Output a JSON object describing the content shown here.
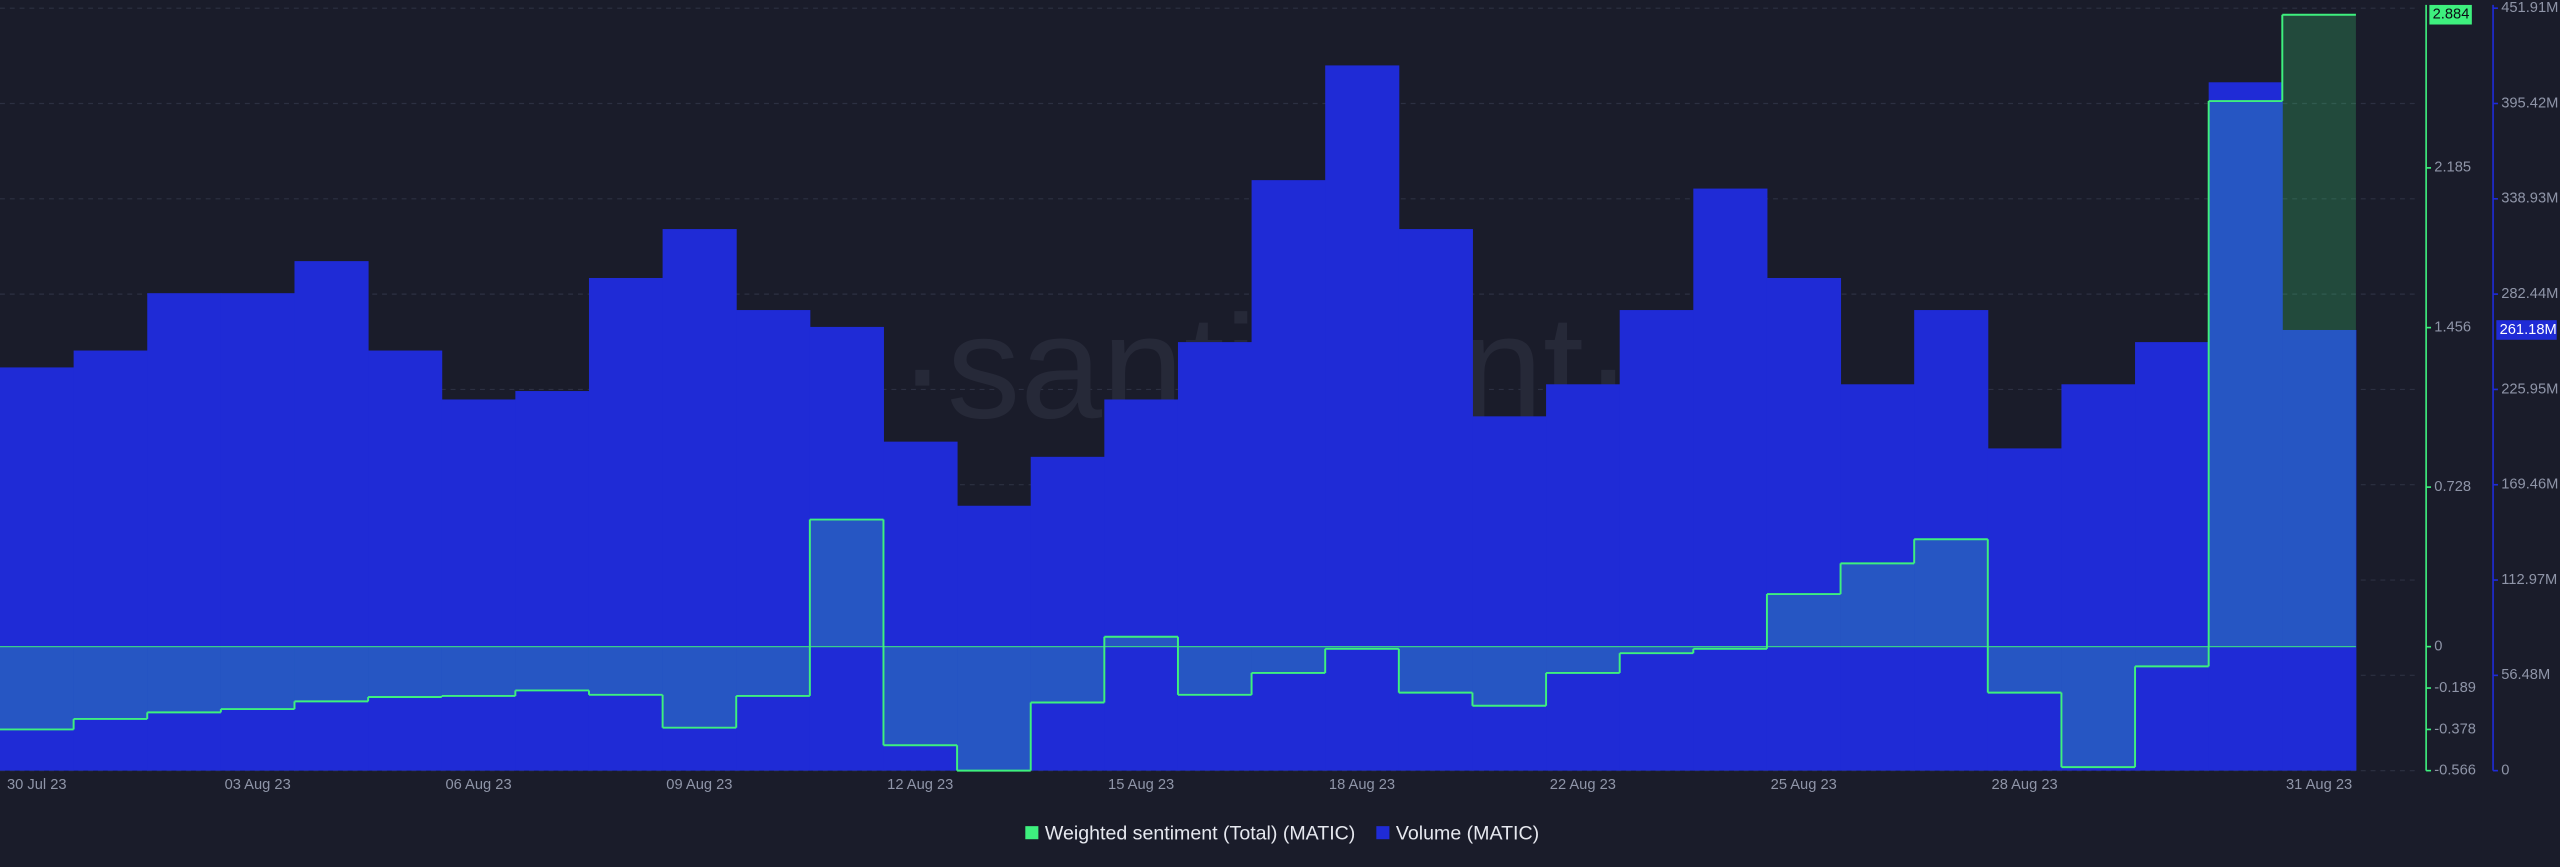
{
  "chart_data": {
    "type": "bar-step",
    "watermark": "·santiment·",
    "categories": [
      "30 Jul 23",
      null,
      null,
      "03 Aug 23",
      null,
      null,
      "06 Aug 23",
      null,
      null,
      "09 Aug 23",
      null,
      null,
      "12 Aug 23",
      null,
      null,
      "15 Aug 23",
      null,
      null,
      "18 Aug 23",
      null,
      null,
      "22 Aug 23",
      null,
      null,
      "25 Aug 23",
      null,
      null,
      "28 Aug 23",
      null,
      null,
      null,
      "31 Aug 23"
    ],
    "series": [
      {
        "name": "Weighted sentiment (Total) (MATIC)",
        "color": "#3ef07e",
        "axis": "y",
        "values": [
          -0.378,
          -0.33,
          -0.3,
          -0.285,
          -0.25,
          -0.23,
          -0.225,
          -0.2,
          -0.22,
          -0.37,
          -0.225,
          0.58,
          -0.45,
          -0.566,
          -0.255,
          0.045,
          -0.22,
          -0.12,
          -0.01,
          -0.21,
          -0.27,
          -0.12,
          -0.03,
          -0.01,
          0.24,
          0.38,
          0.49,
          -0.21,
          -0.55,
          -0.09,
          2.49,
          2.884
        ]
      },
      {
        "name": "Volume (MATIC)",
        "color": "#1f2bd6",
        "axis": "y2",
        "values": [
          239,
          249,
          283,
          283,
          302,
          249,
          220,
          225,
          292,
          321,
          273,
          263,
          195,
          157,
          186,
          220,
          254,
          350,
          418,
          321,
          210,
          229,
          273,
          345,
          292,
          229,
          273,
          191,
          229,
          254,
          408,
          261.18
        ],
        "last_value_label": "261.18M"
      }
    ],
    "ylim": [
      -0.566,
      2.884
    ],
    "yticks": [
      2.185,
      1.456,
      0.728,
      0,
      -0.189,
      -0.378,
      -0.566
    ],
    "y2lim": [
      0,
      451.91
    ],
    "y2ticks": [
      {
        "value": 0,
        "label": "0"
      },
      {
        "value": 56.48,
        "label": "56.48M"
      },
      {
        "value": 112.97,
        "label": "112.97M"
      },
      {
        "value": 169.46,
        "label": "169.46M"
      },
      {
        "value": 225.95,
        "label": "225.95M"
      },
      {
        "value": 282.44,
        "label": "282.44M"
      },
      {
        "value": 338.93,
        "label": "338.93M"
      },
      {
        "value": 395.42,
        "label": "395.42M"
      },
      {
        "value": 451.91,
        "label": "451.91M"
      }
    ],
    "grid": true
  }
}
